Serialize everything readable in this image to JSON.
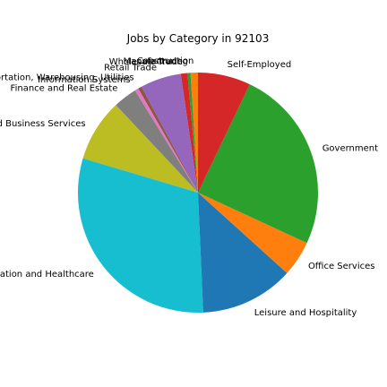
{
  "chart_data": {
    "type": "pie",
    "title": "Jobs by Category in 92103",
    "start_angle_deg": 90,
    "direction": "counterclockwise",
    "slices": [
      {
        "label": "Construction",
        "value": 1.0,
        "color": "#ff7f0e"
      },
      {
        "label": "Manufacturing",
        "value": 0.4,
        "color": "#2ca02c"
      },
      {
        "label": "Wholesale Trade",
        "value": 0.9,
        "color": "#d62728"
      },
      {
        "label": "Retail Trade",
        "value": 5.5,
        "color": "#9467bd"
      },
      {
        "label": "Transportation, Warehousing, Utilities",
        "value": 0.5,
        "color": "#8c564b"
      },
      {
        "label": "Information Systems",
        "value": 0.5,
        "color": "#e377c2"
      },
      {
        "label": "Finance and Real Estate",
        "value": 3.2,
        "color": "#7f7f7f"
      },
      {
        "label": "Professional and Business Services",
        "value": 8.4,
        "color": "#bcbd22"
      },
      {
        "label": "Education and Healthcare",
        "value": 30.3,
        "color": "#17becf"
      },
      {
        "label": "Leisure and Hospitality",
        "value": 12.6,
        "color": "#1f77b4"
      },
      {
        "label": "Office Services",
        "value": 4.8,
        "color": "#ff7f0e"
      },
      {
        "label": "Government",
        "value": 24.8,
        "color": "#2ca02c"
      },
      {
        "label": "Self-Employed",
        "value": 7.1,
        "color": "#d62728"
      }
    ]
  }
}
